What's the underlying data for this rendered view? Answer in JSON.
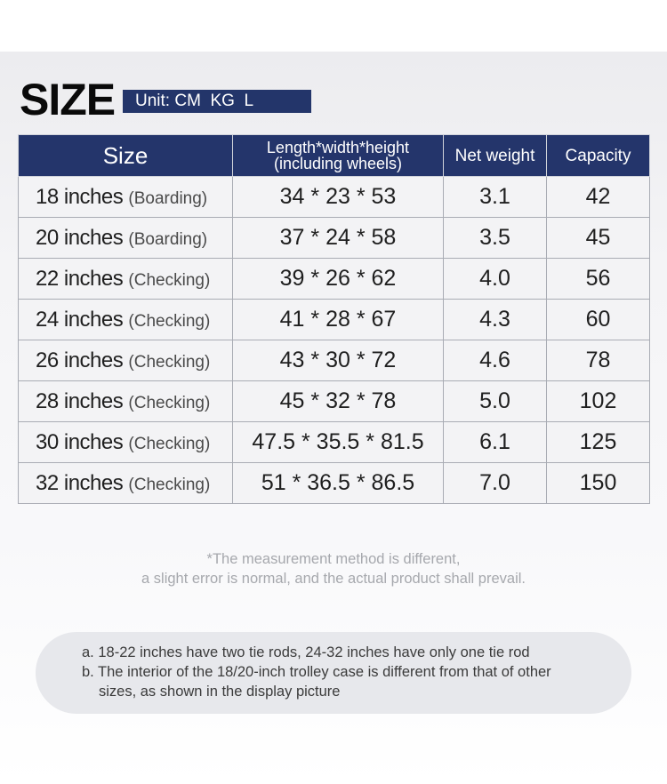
{
  "header": {
    "title": "SIZE",
    "unit": "Unit: CM  KG  L"
  },
  "table": {
    "columns": {
      "size": "Size",
      "dims_line1": "Length*width*height",
      "dims_line2": "(including wheels)",
      "weight": "Net weight",
      "capacity": "Capacity"
    },
    "rows": [
      {
        "size": "18 inches",
        "type": "(Boarding)",
        "dims": "34 * 23 * 53",
        "weight": "3.1",
        "capacity": "42"
      },
      {
        "size": "20 inches",
        "type": "(Boarding)",
        "dims": "37 * 24 * 58",
        "weight": "3.5",
        "capacity": "45"
      },
      {
        "size": "22 inches",
        "type": "(Checking)",
        "dims": "39 * 26 * 62",
        "weight": "4.0",
        "capacity": "56"
      },
      {
        "size": "24 inches",
        "type": "(Checking)",
        "dims": "41 * 28 * 67",
        "weight": "4.3",
        "capacity": "60"
      },
      {
        "size": "26 inches",
        "type": "(Checking)",
        "dims": "43 * 30 * 72",
        "weight": "4.6",
        "capacity": "78"
      },
      {
        "size": "28 inches",
        "type": "(Checking)",
        "dims": "45 * 32 * 78",
        "weight": "5.0",
        "capacity": "102"
      },
      {
        "size": "30 inches",
        "type": "(Checking)",
        "dims": "47.5 * 35.5 * 81.5",
        "weight": "6.1",
        "capacity": "125"
      },
      {
        "size": "32 inches",
        "type": "(Checking)",
        "dims": "51 * 36.5 * 86.5",
        "weight": "7.0",
        "capacity": "150"
      }
    ]
  },
  "disclaimer": {
    "line1": "*The measurement method is different,",
    "line2": "a slight error is normal, and the actual product shall prevail."
  },
  "notes": {
    "a": "a. 18-22 inches have two tie rods, 24-32 inches have only one tie rod",
    "b_line1": "b. The interior of the 18/20-inch trolley case is different from that of other",
    "b_line2": "sizes, as shown in the display picture"
  },
  "colors": {
    "header_bg": "#24356b",
    "cell_bg": "#f3f3f5"
  }
}
